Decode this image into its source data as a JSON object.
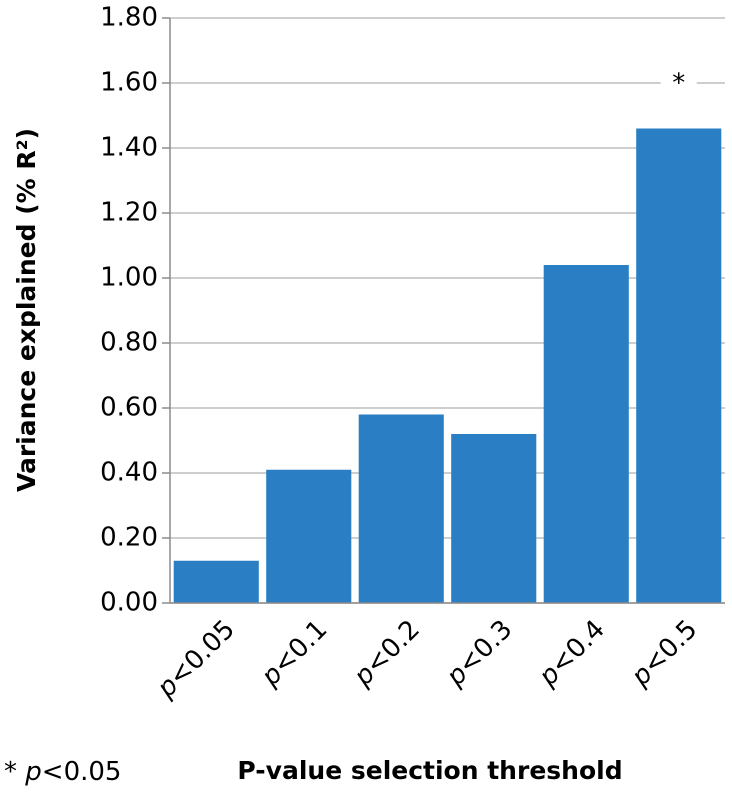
{
  "chart_data": {
    "type": "bar",
    "y_label": "Variance explained (% R²)",
    "x_label": "P-value selection threshold",
    "footnote": "* p<0.05",
    "annotation": "*",
    "annotation_index": 5,
    "categories": [
      "p<0.05",
      "p<0.1",
      "p<0.2",
      "p<0.3",
      "p<0.4",
      "p<0.5"
    ],
    "values": [
      0.13,
      0.41,
      0.58,
      0.52,
      1.04,
      1.46
    ],
    "color": "#2a7fc4",
    "ylim": [
      0,
      1.8
    ],
    "yticks": [
      {
        "value": 0,
        "label": "0.00"
      },
      {
        "value": 0.2,
        "label": "0.20"
      },
      {
        "value": 0.4,
        "label": "0.40"
      },
      {
        "value": 0.6,
        "label": "0.60"
      },
      {
        "value": 0.8,
        "label": "0.80"
      },
      {
        "value": 1.0,
        "label": "1.00"
      },
      {
        "value": 1.2,
        "label": "1.20"
      },
      {
        "value": 1.4,
        "label": "1.40"
      },
      {
        "value": 1.6,
        "label": "1.60"
      },
      {
        "value": 1.8,
        "label": "1.80"
      }
    ],
    "grid": true
  }
}
